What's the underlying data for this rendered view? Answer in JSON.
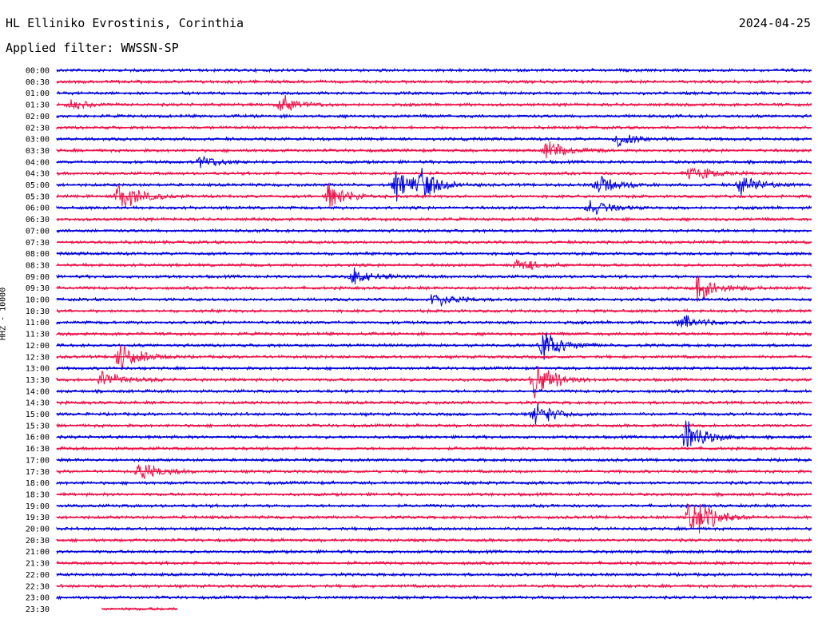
{
  "header": {
    "station": "HL Elliniko Evrostinis, Corinthia",
    "date": "2024-04-25",
    "filter_label": "Applied filter: WWSSN-SP"
  },
  "chart_data": {
    "type": "line",
    "ylabel": "HHZ - 10000",
    "rows": [
      "00:00",
      "00:30",
      "01:00",
      "01:30",
      "02:00",
      "02:30",
      "03:00",
      "03:30",
      "04:00",
      "04:30",
      "05:00",
      "05:30",
      "06:00",
      "06:30",
      "07:00",
      "07:30",
      "08:00",
      "08:30",
      "09:00",
      "09:30",
      "10:00",
      "10:30",
      "11:00",
      "11:30",
      "12:00",
      "12:30",
      "13:00",
      "13:30",
      "14:00",
      "14:30",
      "15:00",
      "15:30",
      "16:00",
      "16:30",
      "17:00",
      "17:30",
      "18:00",
      "18:30",
      "19:00",
      "19:30",
      "20:00",
      "20:30",
      "21:00",
      "21:30",
      "22:00",
      "22:30",
      "23:00",
      "23:30"
    ],
    "trace_colors": [
      "#0000dd",
      "#ee1148"
    ],
    "grid": false,
    "events": [
      {
        "row": "01:30",
        "minute": 0.6,
        "amplitude": 7
      },
      {
        "row": "01:30",
        "minute": 8.9,
        "amplitude": 14
      },
      {
        "row": "03:00",
        "minute": 22.3,
        "amplitude": 12
      },
      {
        "row": "03:30",
        "minute": 19.5,
        "amplitude": 14
      },
      {
        "row": "04:00",
        "minute": 5.7,
        "amplitude": 10
      },
      {
        "row": "04:30",
        "minute": 25.2,
        "amplitude": 12
      },
      {
        "row": "05:00",
        "minute": 13.5,
        "amplitude": 22
      },
      {
        "row": "05:00",
        "minute": 14.5,
        "amplitude": 18
      },
      {
        "row": "05:00",
        "minute": 21.5,
        "amplitude": 16
      },
      {
        "row": "05:00",
        "minute": 27.2,
        "amplitude": 14
      },
      {
        "row": "05:30",
        "minute": 2.5,
        "amplitude": 22
      },
      {
        "row": "05:30",
        "minute": 10.8,
        "amplitude": 22
      },
      {
        "row": "06:00",
        "minute": 21.2,
        "amplitude": 12
      },
      {
        "row": "08:30",
        "minute": 18.3,
        "amplitude": 10
      },
      {
        "row": "09:00",
        "minute": 11.8,
        "amplitude": 14
      },
      {
        "row": "09:30",
        "minute": 25.5,
        "amplitude": 20
      },
      {
        "row": "10:00",
        "minute": 15.0,
        "amplitude": 12
      },
      {
        "row": "11:00",
        "minute": 24.8,
        "amplitude": 12
      },
      {
        "row": "12:00",
        "minute": 19.3,
        "amplitude": 24
      },
      {
        "row": "12:30",
        "minute": 2.5,
        "amplitude": 22
      },
      {
        "row": "13:30",
        "minute": 1.8,
        "amplitude": 14
      },
      {
        "row": "13:30",
        "minute": 19.0,
        "amplitude": 28
      },
      {
        "row": "15:00",
        "minute": 19.0,
        "amplitude": 18
      },
      {
        "row": "16:00",
        "minute": 25.0,
        "amplitude": 26
      },
      {
        "row": "17:30",
        "minute": 3.3,
        "amplitude": 16
      },
      {
        "row": "19:30",
        "minute": 25.2,
        "amplitude": 36
      }
    ]
  }
}
